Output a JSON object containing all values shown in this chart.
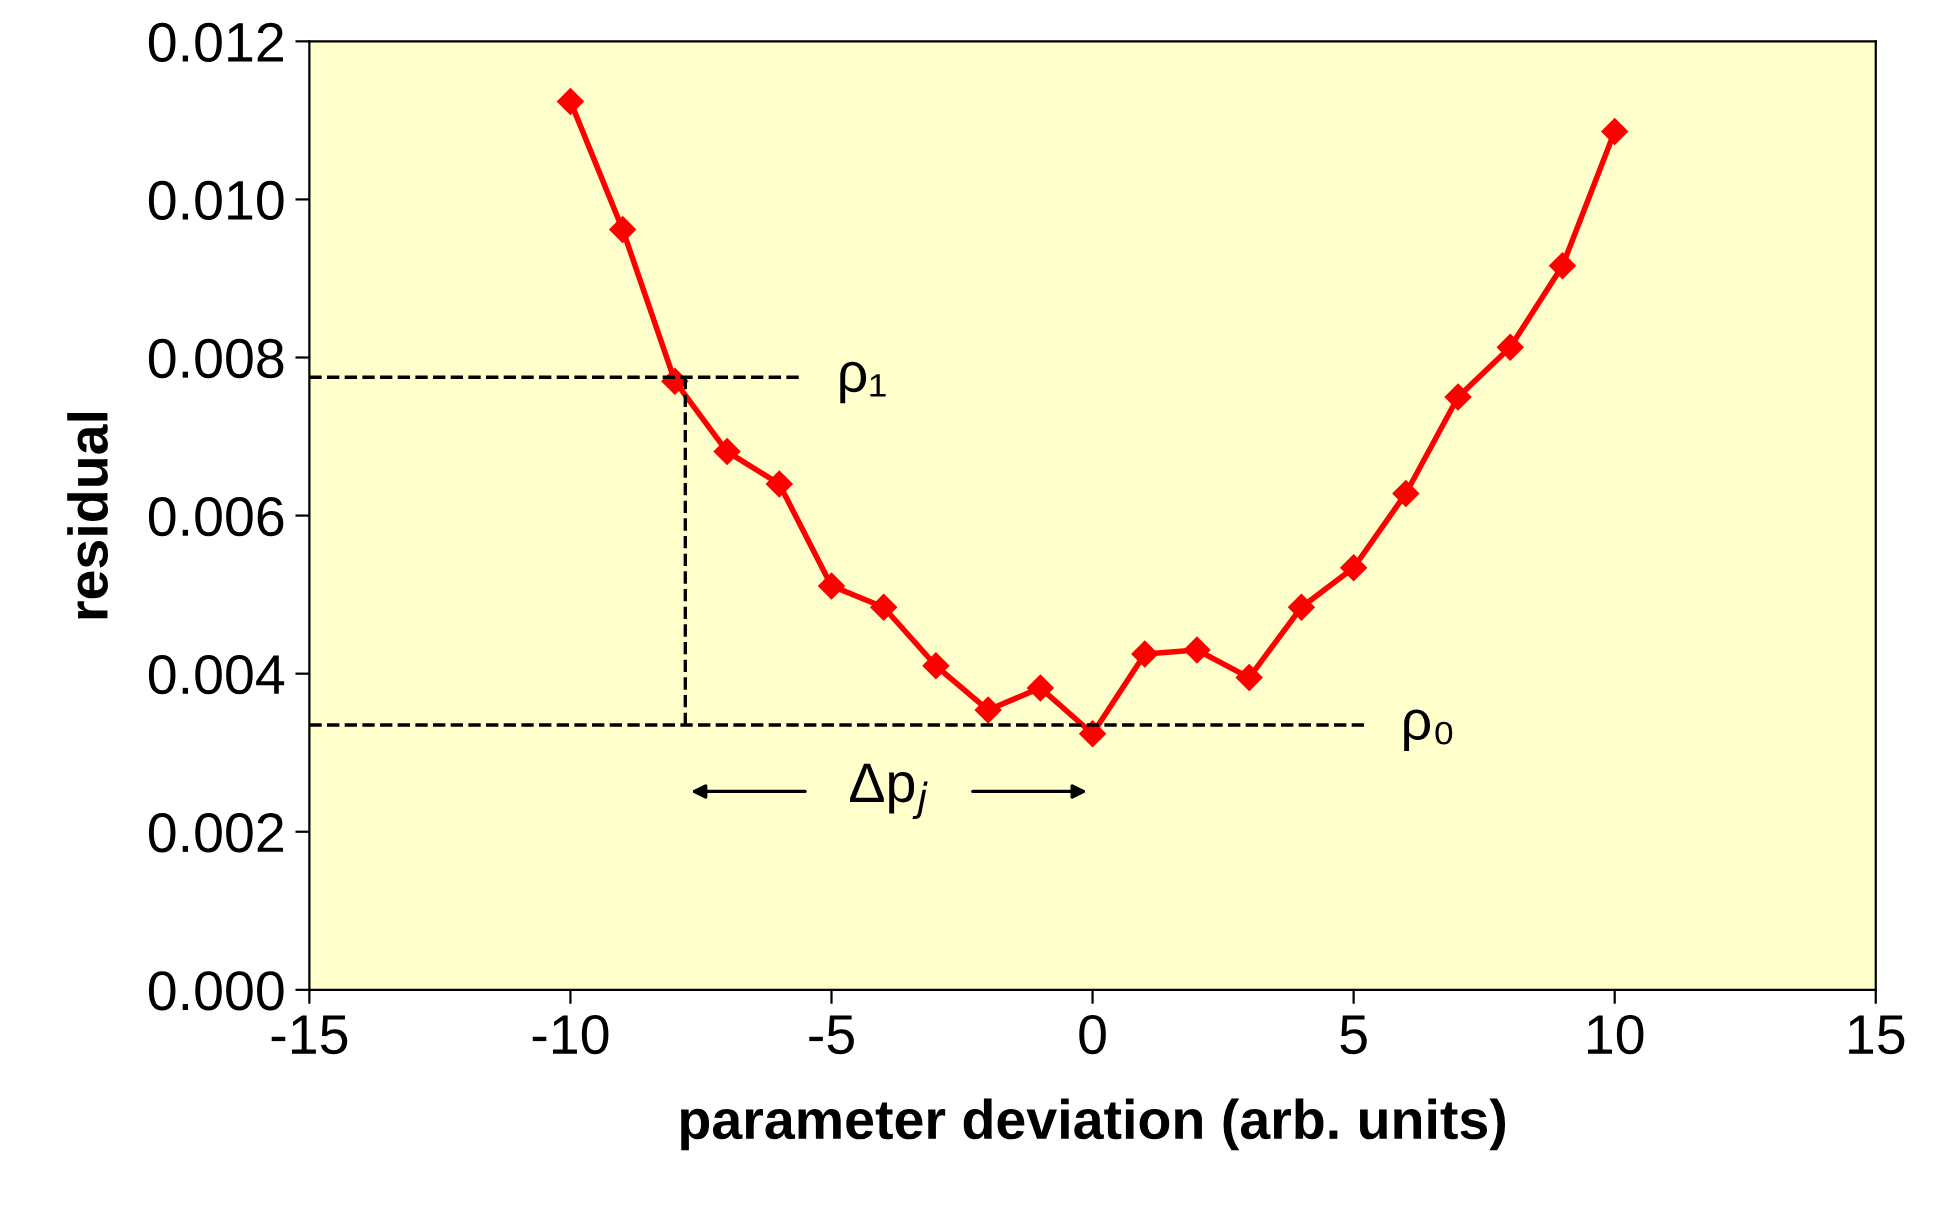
{
  "chart_data": {
    "type": "line",
    "xlabel": "parameter deviation (arb. units)",
    "ylabel": "residual",
    "x": [
      -10,
      -9,
      -8,
      -7,
      -6,
      -5,
      -4,
      -3,
      -2,
      -1,
      0,
      1,
      2,
      3,
      4,
      5,
      6,
      7,
      8,
      9,
      10
    ],
    "series": [
      {
        "color": "#ff0000",
        "values": [
          0.01124,
          0.00962,
          0.0077,
          0.00681,
          0.0064,
          0.00511,
          0.00484,
          0.0041,
          0.00354,
          0.00382,
          0.00324,
          0.00425,
          0.0043,
          0.00395,
          0.00484,
          0.00534,
          0.00628,
          0.0075,
          0.00813,
          0.00916,
          0.01086
        ]
      }
    ],
    "xlim": [
      -15,
      15
    ],
    "xticks": [
      -15,
      -10,
      -5,
      0,
      5,
      10,
      15
    ],
    "ylim": [
      0,
      0.012
    ],
    "yticks": [
      {
        "value": 0,
        "label": "0.000"
      },
      {
        "value": 0.002,
        "label": "0.002"
      },
      {
        "value": 0.004,
        "label": "0.004"
      },
      {
        "value": 0.006,
        "label": "0.006"
      },
      {
        "value": 0.008,
        "label": "0.008"
      },
      {
        "value": 0.01,
        "label": "0.010"
      },
      {
        "value": 0.012,
        "label": "0.012"
      }
    ],
    "ref_lines": [
      {
        "axis": "y",
        "value": 0.00775,
        "label": "ρ₁",
        "color": "#000000",
        "line_style": "dashed"
      },
      {
        "axis": "y",
        "value": 0.00335,
        "label": "ρ₀",
        "color": "#000000",
        "line_style": "dashed"
      },
      {
        "axis": "x",
        "value": -7.8,
        "color": "#000000",
        "line_style": "dashed"
      }
    ],
    "annotations": [
      "Δp$_{j}$"
    ],
    "marker": "diamond",
    "line_style": "solid",
    "grid": false,
    "legend": false
  }
}
